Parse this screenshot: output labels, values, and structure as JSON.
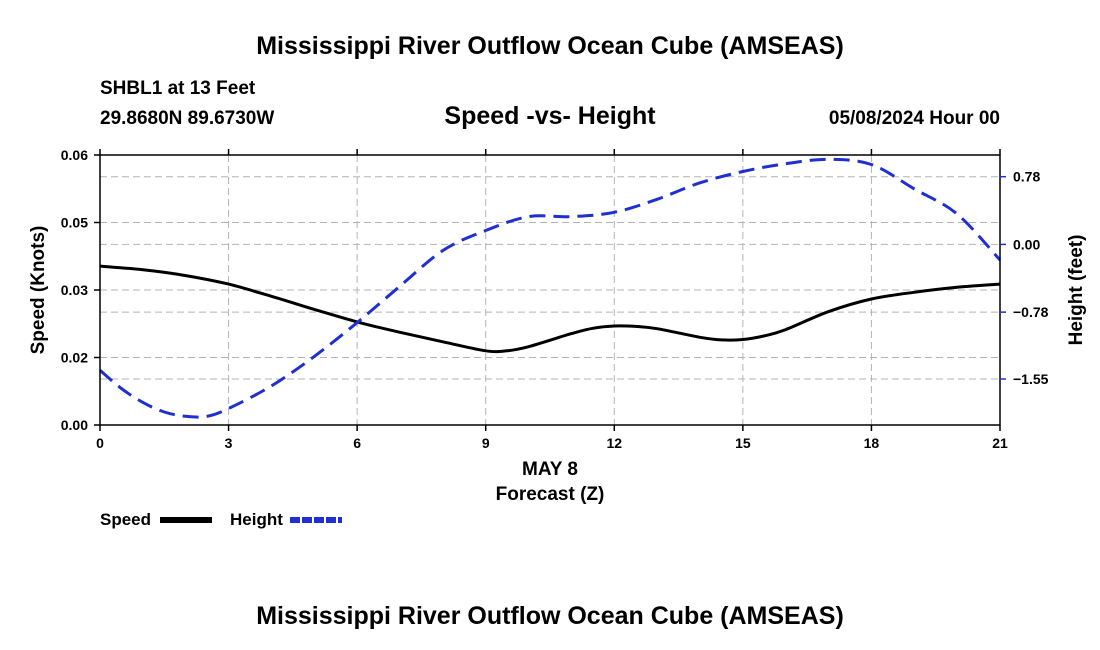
{
  "header": {
    "title": "Mississippi River Outflow Ocean Cube (AMSEAS)",
    "footer_title": "Mississippi River Outflow Ocean Cube (AMSEAS)",
    "station": "SHBL1 at 13 Feet",
    "coords": "29.8680N  89.6730W",
    "datetime": "05/08/2024 Hour 00"
  },
  "legend": {
    "speed_label": "Speed",
    "height_label": "Height"
  },
  "chart_data": {
    "type": "line",
    "title": "Speed -vs- Height",
    "xlabel": "Forecast (Z)",
    "date_label": "MAY 8",
    "ylabel_left": "Speed (Knots)",
    "ylabel_right": "Height (feet)",
    "xlim": [
      0,
      21
    ],
    "ylim_left": [
      0,
      0.06
    ],
    "ylim_right": [
      -2.08,
      1.03
    ],
    "x_ticks": [
      0,
      3,
      6,
      9,
      12,
      15,
      18,
      21
    ],
    "x_tick_labels": [
      "0",
      "3",
      "6",
      "9",
      "12",
      "15",
      "18",
      "21"
    ],
    "y_left_ticks": [
      0,
      0.015,
      0.03,
      0.045,
      0.06
    ],
    "y_left_tick_labels": [
      "0.00",
      "0.02",
      "0.03",
      "0.05",
      "0.06"
    ],
    "y_right_ticks": [
      0.78,
      0.0,
      -0.78,
      -1.55
    ],
    "y_right_tick_labels": [
      "0.78",
      "0.00",
      "−0.78",
      "−1.55"
    ],
    "colors": {
      "speed": "#000000",
      "height": "#1f2fd1"
    },
    "series": [
      {
        "name": "Speed",
        "axis": "left",
        "x": [
          0,
          1,
          2,
          3,
          4,
          5,
          6,
          7,
          8,
          9,
          9.5,
          10,
          11,
          11.5,
          12,
          12.5,
          13,
          14,
          14.5,
          15,
          15.5,
          16,
          17,
          18,
          19,
          20,
          21
        ],
        "values": [
          0.0353,
          0.0345,
          0.0332,
          0.0313,
          0.0286,
          0.0257,
          0.0229,
          0.0206,
          0.0185,
          0.0165,
          0.0165,
          0.0174,
          0.0203,
          0.0215,
          0.022,
          0.0219,
          0.0214,
          0.0195,
          0.0189,
          0.019,
          0.0198,
          0.0212,
          0.0252,
          0.028,
          0.0295,
          0.0306,
          0.0313
        ]
      },
      {
        "name": "Height",
        "axis": "right",
        "x": [
          0,
          0.5,
          1,
          1.5,
          2,
          2.5,
          3,
          4,
          5,
          6,
          7,
          8,
          9,
          10,
          11,
          12,
          13,
          14,
          15,
          16,
          17,
          18,
          19,
          20,
          21
        ],
        "values": [
          -1.45,
          -1.66,
          -1.82,
          -1.93,
          -1.98,
          -1.98,
          -1.89,
          -1.63,
          -1.29,
          -0.9,
          -0.48,
          -0.07,
          0.16,
          0.32,
          0.32,
          0.37,
          0.52,
          0.71,
          0.84,
          0.93,
          0.98,
          0.92,
          0.64,
          0.35,
          -0.18
        ]
      }
    ]
  }
}
